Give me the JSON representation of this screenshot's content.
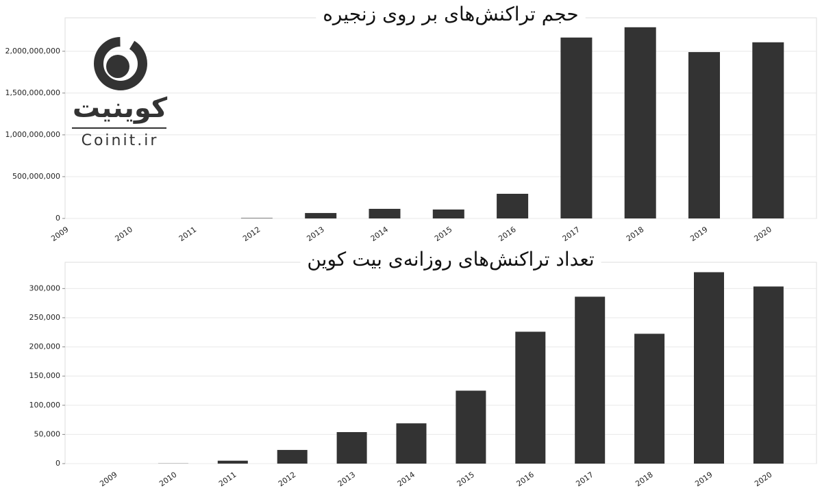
{
  "logo": {
    "name": "کوینیت",
    "site": "Coinit.ir"
  },
  "chart_data": [
    {
      "type": "bar",
      "title": "حجم تراکنش‌های بر روی زنجیره",
      "categories": [
        "2009",
        "2010",
        "2011",
        "2012",
        "2013",
        "2014",
        "2015",
        "2016",
        "2017",
        "2018",
        "2019",
        "2020"
      ],
      "values": [
        0,
        0,
        0,
        5000000,
        65000000,
        115000000,
        107000000,
        295000000,
        2164000000,
        2287000000,
        1990000000,
        2107000000
      ],
      "color": "#333333",
      "ylim": [
        0,
        2400000000
      ],
      "yticks": [
        0,
        {
          "value": 500000000,
          "label": "500,000,000"
        },
        {
          "value": 1000000000,
          "label": "1,000,000,000"
        },
        {
          "value": 1500000000,
          "label": "1,500,000,000"
        },
        {
          "value": 2000000000,
          "label": "2,000,000,000"
        }
      ],
      "grid": true
    },
    {
      "type": "bar",
      "title": "تعداد تراکنش‌های روزانه‌ی بیت کوین",
      "categories": [
        "2009",
        "2010",
        "2011",
        "2012",
        "2013",
        "2014",
        "2015",
        "2016",
        "2017",
        "2018",
        "2019",
        "2020"
      ],
      "values": [
        0,
        300,
        5000,
        23400,
        54000,
        69000,
        125000,
        226000,
        286000,
        222500,
        328000,
        303500
      ],
      "color": "#333333",
      "ylim": [
        0,
        345000
      ],
      "yticks": [
        0,
        {
          "value": 50000,
          "label": "50,000"
        },
        {
          "value": 100000,
          "label": "100,000"
        },
        {
          "value": 150000,
          "label": "150,000"
        },
        {
          "value": 200000,
          "label": "200,000"
        },
        {
          "value": 250000,
          "label": "250,000"
        },
        {
          "value": 300000,
          "label": "300,000"
        }
      ],
      "grid": true
    }
  ]
}
